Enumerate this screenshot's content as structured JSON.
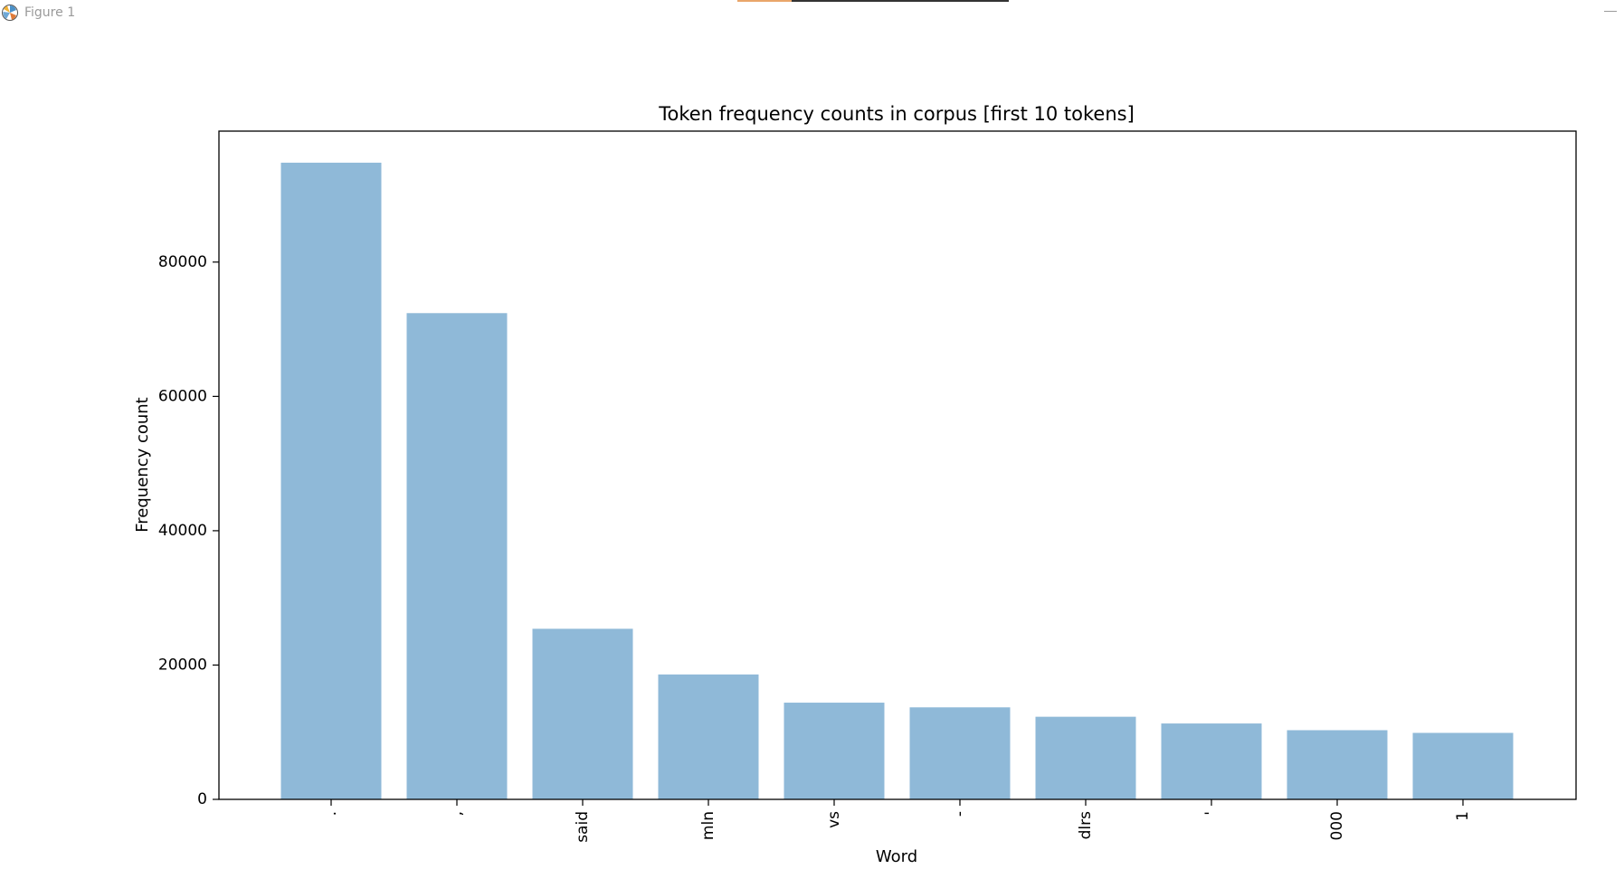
{
  "window": {
    "title": "Figure 1"
  },
  "chart_data": {
    "type": "bar",
    "title": "Token frequency counts in corpus [first 10 tokens]",
    "xlabel": "Word",
    "ylabel": "Frequency count",
    "categories": [
      ".",
      ",",
      "said",
      "mln",
      "vs",
      "-",
      "dlrs",
      "'",
      "000",
      "1"
    ],
    "values": [
      94800,
      72400,
      25400,
      18600,
      14400,
      13700,
      12300,
      11300,
      10300,
      9900
    ],
    "ylim": [
      0,
      99500
    ],
    "yticks": [
      0,
      20000,
      40000,
      60000,
      80000
    ],
    "bar_color": "#8fb9d8",
    "grid": false,
    "legend": "none"
  }
}
